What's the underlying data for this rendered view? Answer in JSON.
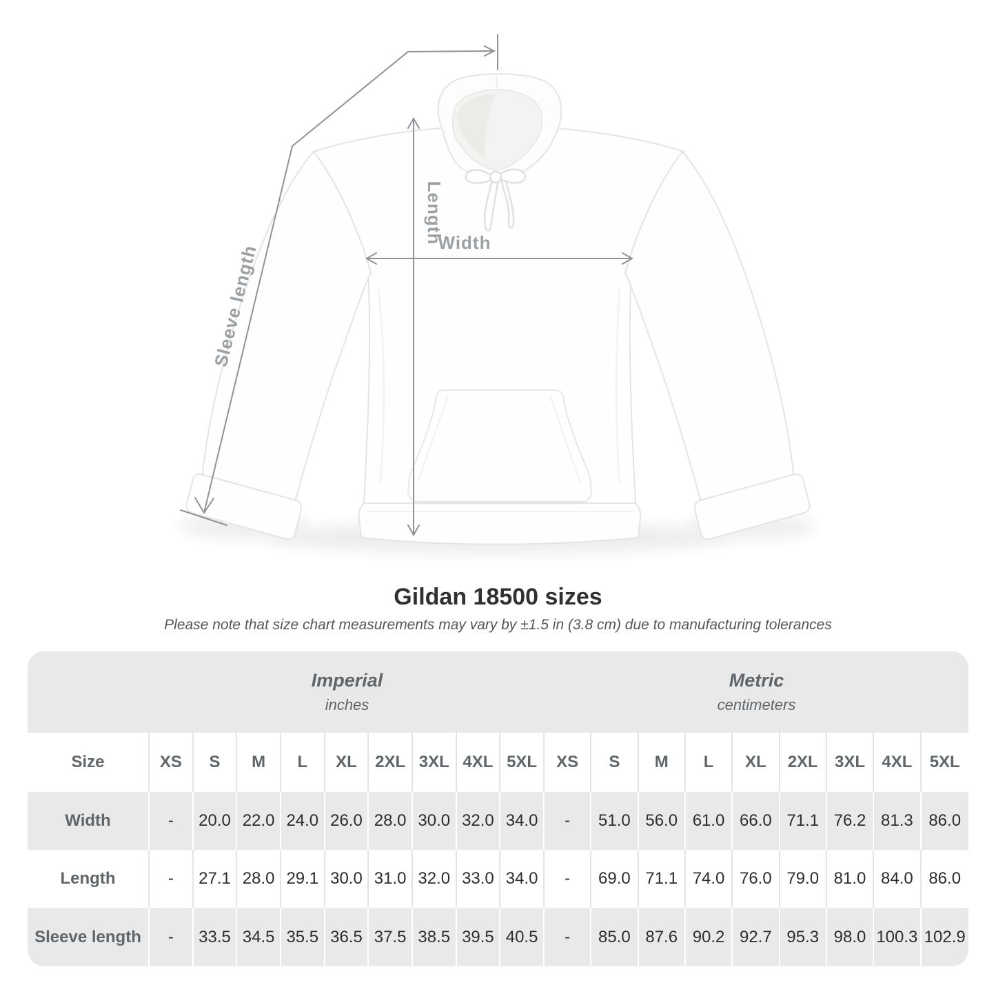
{
  "heading": {
    "title": "Gildan 18500 sizes",
    "note": "Please note that size chart measurements may vary by ±1.5 in (3.8 cm) due to manufacturing tolerances"
  },
  "diagram": {
    "length_label": "Length",
    "width_label": "Width",
    "sleeve_label": "Sleeve length"
  },
  "colors": {
    "arrow": "#8d9296",
    "measure_label": "#9ba0a4",
    "table_band": "#e9e9e9",
    "header_text": "#5f666b",
    "value_text": "#2b2e31"
  },
  "chart_data": {
    "type": "table",
    "title": "Gildan 18500 sizes",
    "size_header": "Size",
    "unit_groups": [
      {
        "name": "Imperial",
        "unit": "inches"
      },
      {
        "name": "Metric",
        "unit": "centimeters"
      }
    ],
    "sizes": [
      "XS",
      "S",
      "M",
      "L",
      "XL",
      "2XL",
      "3XL",
      "4XL",
      "5XL"
    ],
    "rows": [
      {
        "label": "Width",
        "imperial": [
          "-",
          "20.0",
          "22.0",
          "24.0",
          "26.0",
          "28.0",
          "30.0",
          "32.0",
          "34.0"
        ],
        "metric": [
          "-",
          "51.0",
          "56.0",
          "61.0",
          "66.0",
          "71.1",
          "76.2",
          "81.3",
          "86.0"
        ]
      },
      {
        "label": "Length",
        "imperial": [
          "-",
          "27.1",
          "28.0",
          "29.1",
          "30.0",
          "31.0",
          "32.0",
          "33.0",
          "34.0"
        ],
        "metric": [
          "-",
          "69.0",
          "71.1",
          "74.0",
          "76.0",
          "79.0",
          "81.0",
          "84.0",
          "86.0"
        ]
      },
      {
        "label": "Sleeve length",
        "imperial": [
          "-",
          "33.5",
          "34.5",
          "35.5",
          "36.5",
          "37.5",
          "38.5",
          "39.5",
          "40.5"
        ],
        "metric": [
          "-",
          "85.0",
          "87.6",
          "90.2",
          "92.7",
          "95.3",
          "98.0",
          "100.3",
          "102.9"
        ]
      }
    ]
  }
}
